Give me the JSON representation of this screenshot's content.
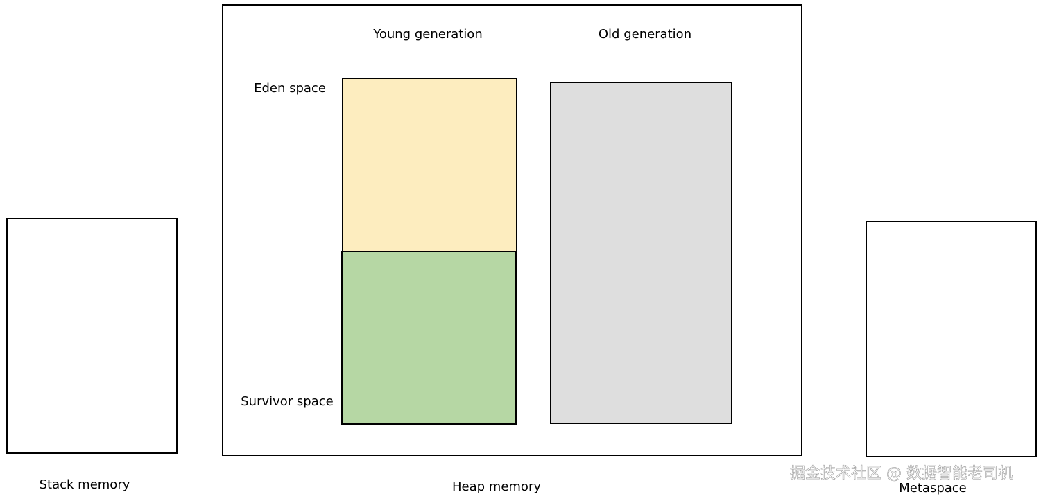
{
  "diagram": {
    "stack": {
      "label": "Stack memory"
    },
    "heap": {
      "label": "Heap memory",
      "young": {
        "label": "Young generation",
        "eden": "Eden space",
        "survivor": "Survivor space"
      },
      "old": {
        "label": "Old generation"
      }
    },
    "metaspace": {
      "label": "Metaspace"
    },
    "watermark": "掘金技术社区 @ 数据智能老司机"
  }
}
